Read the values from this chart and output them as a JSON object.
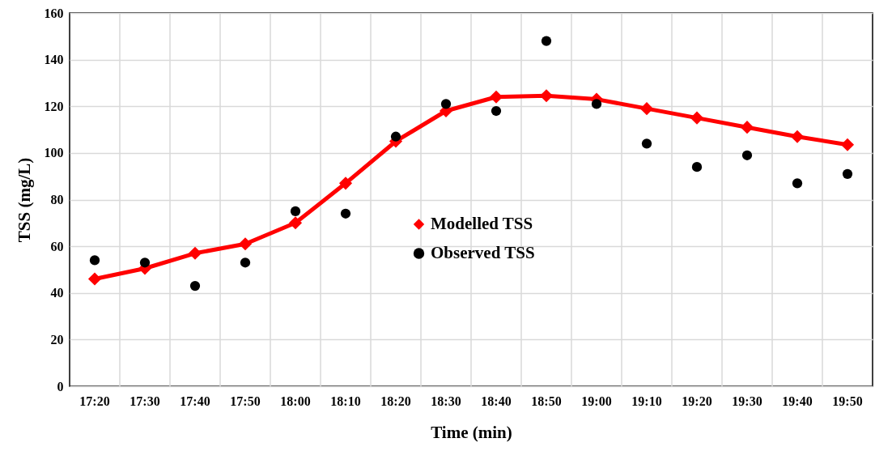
{
  "chart_data": {
    "type": "line",
    "xlabel": "Time (min)",
    "ylabel": "TSS (mg/L)",
    "categories": [
      "17:20",
      "17:30",
      "17:40",
      "17:50",
      "18:00",
      "18:10",
      "18:20",
      "18:30",
      "18:40",
      "18:50",
      "19:00",
      "19:10",
      "19:20",
      "19:30",
      "19:40",
      "19:50"
    ],
    "series": [
      {
        "name": "Modelled TSS",
        "type": "line",
        "marker": "diamond",
        "color": "#ff0000",
        "values": [
          46,
          50.5,
          57,
          61,
          70,
          87,
          105,
          118,
          124,
          124.5,
          123,
          119,
          115,
          111,
          107,
          103.5
        ]
      },
      {
        "name": "Observed TSS",
        "type": "scatter",
        "marker": "circle",
        "color": "#000000",
        "values": [
          54,
          53,
          43,
          53,
          75,
          74,
          107,
          121,
          118,
          148,
          121,
          104,
          94,
          99,
          87,
          91
        ]
      }
    ],
    "ylim": [
      0,
      160
    ],
    "yticks": [
      0,
      20,
      40,
      60,
      80,
      100,
      120,
      140,
      160
    ],
    "grid": true,
    "legend": "center"
  }
}
